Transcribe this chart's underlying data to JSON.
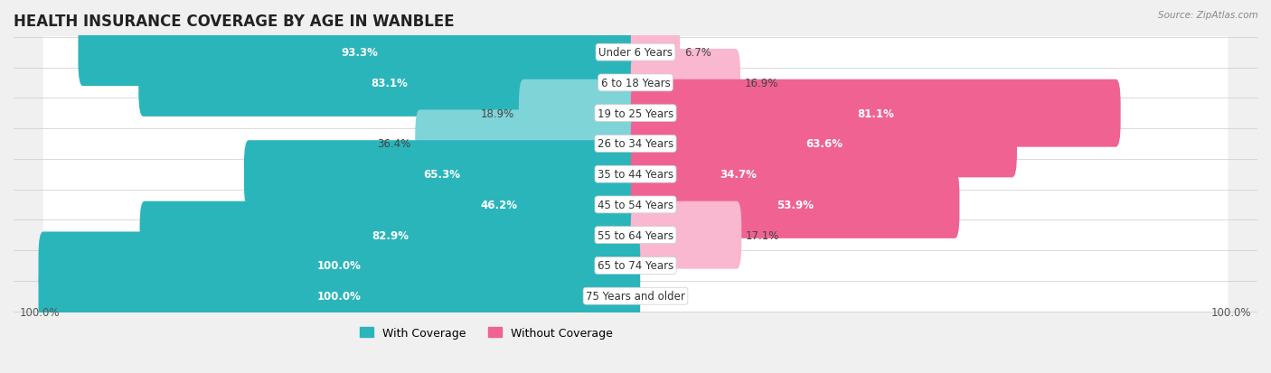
{
  "title": "HEALTH INSURANCE COVERAGE BY AGE IN WANBLEE",
  "source": "Source: ZipAtlas.com",
  "categories": [
    "Under 6 Years",
    "6 to 18 Years",
    "19 to 25 Years",
    "26 to 34 Years",
    "35 to 44 Years",
    "45 to 54 Years",
    "55 to 64 Years",
    "65 to 74 Years",
    "75 Years and older"
  ],
  "with_coverage": [
    93.3,
    83.1,
    18.9,
    36.4,
    65.3,
    46.2,
    82.9,
    100.0,
    100.0
  ],
  "without_coverage": [
    6.7,
    16.9,
    81.1,
    63.6,
    34.7,
    53.9,
    17.1,
    0.0,
    0.0
  ],
  "color_with_dark": "#2ab5bb",
  "color_with_light": "#7fd4d8",
  "color_without_dark": "#f06292",
  "color_without_light": "#f9b8d0",
  "row_bg_odd": "#e8e8e8",
  "row_bg_even": "#f2f2f2",
  "title_fontsize": 12,
  "label_fontsize": 8.5,
  "legend_fontsize": 9,
  "figsize": [
    14.06,
    4.14
  ],
  "dpi": 100
}
